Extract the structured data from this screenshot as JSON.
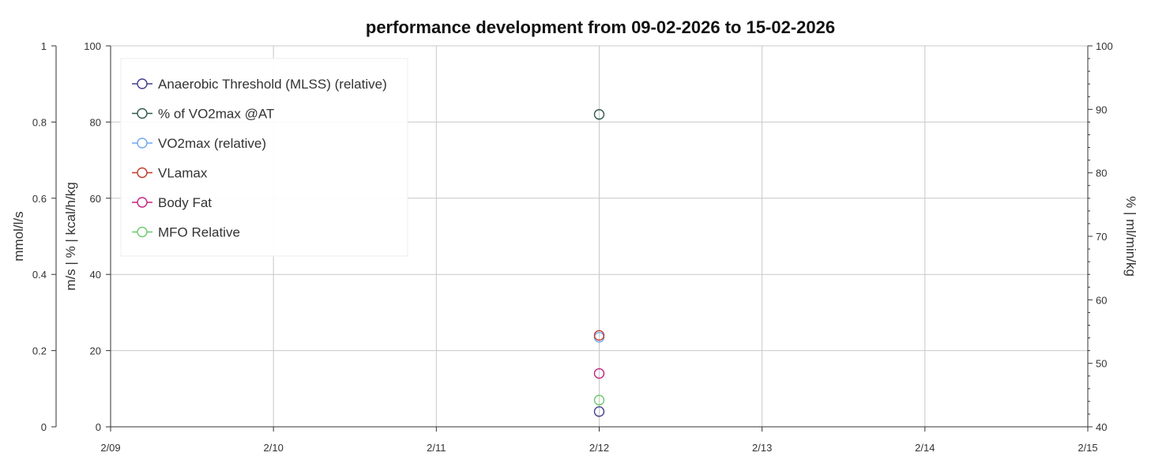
{
  "chart_data": {
    "type": "scatter",
    "title": "performance development from 09-02-2026 to 15-02-2026",
    "x_ticks": [
      "2/09",
      "2/10",
      "2/11",
      "2/12",
      "2/13",
      "2/14",
      "2/15"
    ],
    "x_range": [
      "2/09",
      "2/15"
    ],
    "axes": {
      "left_outer": {
        "label": "mmol/l/s",
        "range": [
          0,
          1
        ],
        "ticks": [
          "0",
          "0.2",
          "0.4",
          "0.6",
          "0.8",
          "1"
        ]
      },
      "left_inner": {
        "label": "m/s | % | kcal/h/kg",
        "range": [
          0,
          100
        ],
        "ticks": [
          "0",
          "20",
          "40",
          "60",
          "80",
          "100"
        ]
      },
      "right": {
        "label": "% | ml/min/kg",
        "range": [
          40,
          100
        ],
        "ticks": [
          "40",
          "50",
          "60",
          "70",
          "80",
          "90",
          "100"
        ]
      }
    },
    "grid": true,
    "legend_position": "top-left",
    "series": [
      {
        "name": "Anaerobic Threshold (MLSS) (relative)",
        "color": "#3f3f8f",
        "axis": "left_inner",
        "points": [
          {
            "x": "2/12",
            "y": 4
          }
        ]
      },
      {
        "name": "% of VO2max @AT",
        "color": "#2e5a4c",
        "axis": "left_inner",
        "points": [
          {
            "x": "2/12",
            "y": 82
          }
        ]
      },
      {
        "name": "VO2max (relative)",
        "color": "#6fa8f0",
        "axis": "left_inner",
        "points": [
          {
            "x": "2/12",
            "y": 23.5
          }
        ]
      },
      {
        "name": "VLamax",
        "color": "#c0392b",
        "axis": "left_inner",
        "points": [
          {
            "x": "2/12",
            "y": 24
          }
        ]
      },
      {
        "name": "Body Fat",
        "color": "#c2237f",
        "axis": "left_inner",
        "points": [
          {
            "x": "2/12",
            "y": 14
          }
        ]
      },
      {
        "name": "MFO Relative",
        "color": "#6cc96c",
        "axis": "left_inner",
        "points": [
          {
            "x": "2/12",
            "y": 7
          }
        ]
      }
    ]
  }
}
